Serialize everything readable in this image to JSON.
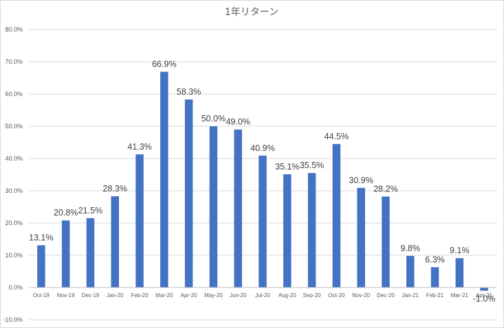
{
  "chart_data": {
    "type": "bar",
    "title": "1年リターン",
    "categories": [
      "Oct-19",
      "Nov-19",
      "Dec-19",
      "Jan-20",
      "Feb-20",
      "Mar-20",
      "Apr-20",
      "May-20",
      "Jun-20",
      "Jul-20",
      "Aug-20",
      "Sep-20",
      "Oct-20",
      "Nov-20",
      "Dec-20",
      "Jan-21",
      "Feb-21",
      "Mar-21",
      "Apr-21"
    ],
    "values": [
      13.1,
      20.8,
      21.5,
      28.3,
      41.3,
      66.9,
      58.3,
      50.0,
      49.0,
      40.9,
      35.1,
      35.5,
      44.5,
      30.9,
      28.2,
      9.8,
      6.3,
      9.1,
      -1.0
    ],
    "data_labels": [
      "13.1%",
      "20.8%",
      "21.5%",
      "28.3%",
      "41.3%",
      "66.9%",
      "58.3%",
      "50.0%",
      "49.0%",
      "40.9%",
      "35.1%",
      "35.5%",
      "44.5%",
      "30.9%",
      "28.2%",
      "9.8%",
      "6.3%",
      "9.1%",
      "-1.0%"
    ],
    "ylim": [
      -10,
      80
    ],
    "yticks": [
      -10,
      0,
      10,
      20,
      30,
      40,
      50,
      60,
      70,
      80
    ],
    "ytick_labels": [
      "-10.0%",
      "0.0%",
      "10.0%",
      "20.0%",
      "30.0%",
      "40.0%",
      "50.0%",
      "60.0%",
      "70.0%",
      "80.0%"
    ],
    "xlabel": "",
    "ylabel": "",
    "grid": true,
    "bar_color": "#4472c4"
  }
}
